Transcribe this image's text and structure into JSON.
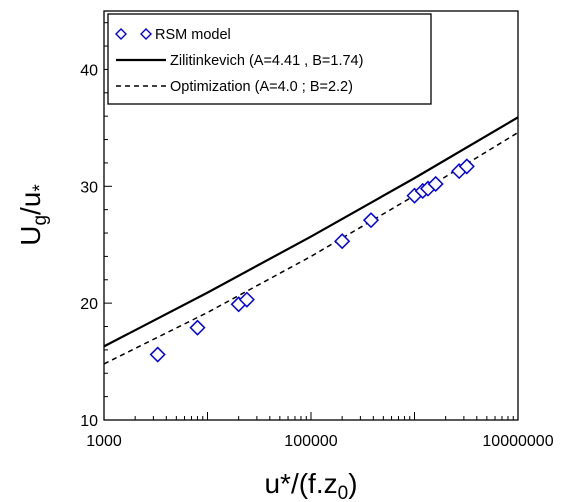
{
  "chart_data": {
    "type": "line",
    "x_scale": "log",
    "xlim": [
      1000,
      10000000
    ],
    "ylim": [
      10,
      45
    ],
    "xticks": [
      {
        "value": 1000,
        "label": "1000"
      },
      {
        "value": 100000,
        "label": "100000"
      },
      {
        "value": 10000000,
        "label": "10000000"
      }
    ],
    "yticks": [
      {
        "value": 10,
        "label": "10"
      },
      {
        "value": 20,
        "label": "20"
      },
      {
        "value": 30,
        "label": "30"
      },
      {
        "value": 40,
        "label": "40"
      }
    ],
    "ylabel": {
      "main": "U",
      "sub1": "g",
      "mid": "/u",
      "sub2": "*"
    },
    "xlabel": {
      "main": "u*/(f.z",
      "sub": "0",
      "end": ")"
    },
    "legend_position": "top-left",
    "grid": false,
    "series": [
      {
        "name": "RSM model",
        "kind": "scatter",
        "marker": "diamond",
        "color": "#0000ee",
        "x": [
          3300,
          8000,
          20000,
          24000,
          200000,
          380000,
          1000000,
          1200000,
          1350000,
          1600000,
          2700000,
          3200000
        ],
        "y": [
          15.6,
          17.9,
          19.9,
          20.3,
          25.3,
          27.1,
          29.2,
          29.6,
          29.8,
          30.2,
          31.3,
          31.7
        ]
      },
      {
        "name": "Zilitinkevich (A=4.41 , B=1.74)",
        "kind": "line",
        "style": "solid",
        "color": "#000000",
        "x": [
          1000,
          10000,
          100000,
          1000000,
          10000000
        ],
        "y": [
          16.3,
          20.9,
          25.7,
          30.7,
          35.9
        ]
      },
      {
        "name": "Optimization (A=4.0 ;  B=2.2)",
        "kind": "line",
        "style": "dashed",
        "color": "#000000",
        "x": [
          1000,
          10000,
          100000,
          1000000,
          10000000
        ],
        "y": [
          14.8,
          19.2,
          24.0,
          29.2,
          34.6
        ]
      }
    ]
  }
}
